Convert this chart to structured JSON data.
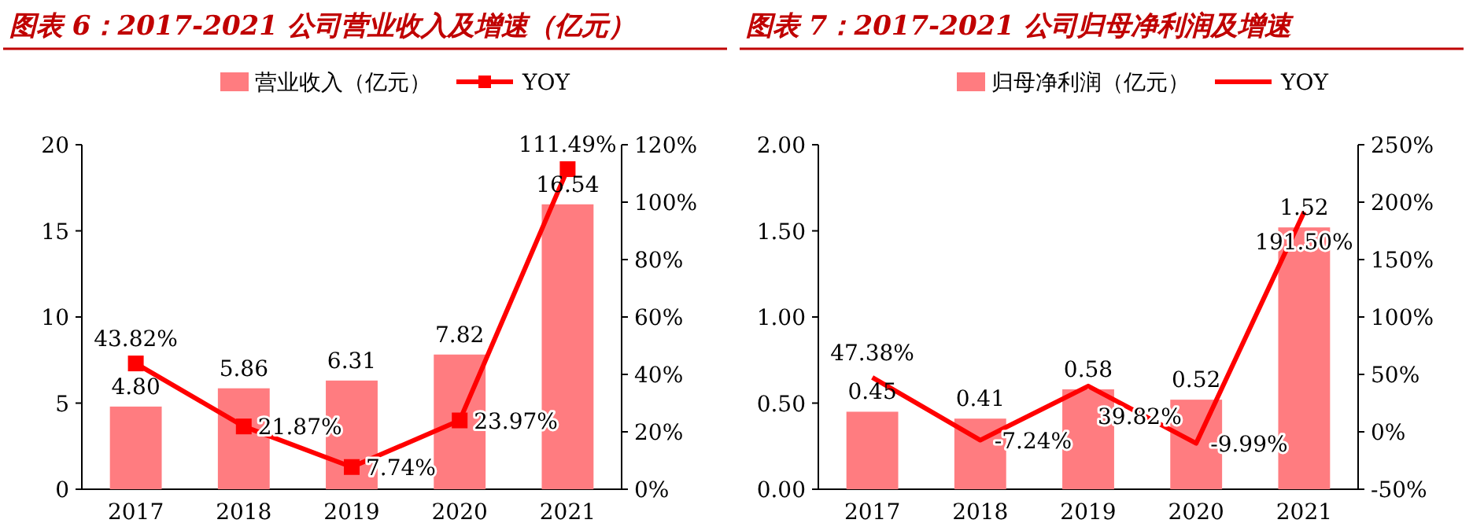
{
  "chart_data": [
    {
      "type": "bar",
      "title": "图表 6：2017-2021 公司营业收入及增速（亿元）",
      "categories": [
        "2017",
        "2018",
        "2019",
        "2020",
        "2021"
      ],
      "legend": "top",
      "series": [
        {
          "name": "营业收入（亿元）",
          "color": "#ff7c80",
          "values": [
            4.8,
            5.86,
            6.31,
            7.82,
            16.54
          ],
          "value_labels": [
            "4.80",
            "5.86",
            "6.31",
            "7.82",
            "16.54"
          ]
        },
        {
          "name": "YOY",
          "type": "line",
          "axis": "y2",
          "color": "#ff0000",
          "marker": "square",
          "values": [
            43.82,
            21.87,
            7.74,
            23.97,
            111.49
          ],
          "value_labels": [
            "43.82%",
            "21.87%",
            "7.74%",
            "23.97%",
            "111.49%"
          ]
        }
      ],
      "ylim": [
        0,
        20
      ],
      "yticks": [
        0,
        5,
        10,
        15,
        20
      ],
      "y2lim": [
        0,
        120
      ],
      "y2ticks": [
        {
          "value": 0,
          "label": "0%"
        },
        {
          "value": 20,
          "label": "20%"
        },
        {
          "value": 40,
          "label": "40%"
        },
        {
          "value": 60,
          "label": "60%"
        },
        {
          "value": 80,
          "label": "80%"
        },
        {
          "value": 100,
          "label": "100%"
        },
        {
          "value": 120,
          "label": "120%"
        }
      ]
    },
    {
      "type": "bar",
      "title": "图表 7：2017-2021 公司归母净利润及增速",
      "categories": [
        "2017",
        "2018",
        "2019",
        "2020",
        "2021"
      ],
      "legend": "top",
      "series": [
        {
          "name": "归母净利润（亿元）",
          "color": "#ff7c80",
          "values": [
            0.45,
            0.41,
            0.58,
            0.52,
            1.52
          ],
          "value_labels": [
            "0.45",
            "0.41",
            "0.58",
            "0.52",
            "1.52"
          ]
        },
        {
          "name": "YOY",
          "type": "line",
          "axis": "y2",
          "color": "#ff0000",
          "values": [
            47.38,
            -7.24,
            39.82,
            -9.99,
            191.5
          ],
          "value_labels": [
            "47.38%",
            "-7.24%",
            "39.82%",
            "-9.99%",
            "191.50%"
          ]
        }
      ],
      "ylim": [
        0,
        2
      ],
      "yticks": [
        {
          "value": 0,
          "label": "0.00"
        },
        {
          "value": 0.5,
          "label": "0.50"
        },
        {
          "value": 1,
          "label": "1.00"
        },
        {
          "value": 1.5,
          "label": "1.50"
        },
        {
          "value": 2,
          "label": "2.00"
        }
      ],
      "y2lim": [
        -50,
        250
      ],
      "y2ticks": [
        {
          "value": -50,
          "label": "-50%"
        },
        {
          "value": 0,
          "label": "0%"
        },
        {
          "value": 50,
          "label": "50%"
        },
        {
          "value": 100,
          "label": "100%"
        },
        {
          "value": 150,
          "label": "150%"
        },
        {
          "value": 200,
          "label": "200%"
        },
        {
          "value": 250,
          "label": "250%"
        }
      ]
    }
  ]
}
